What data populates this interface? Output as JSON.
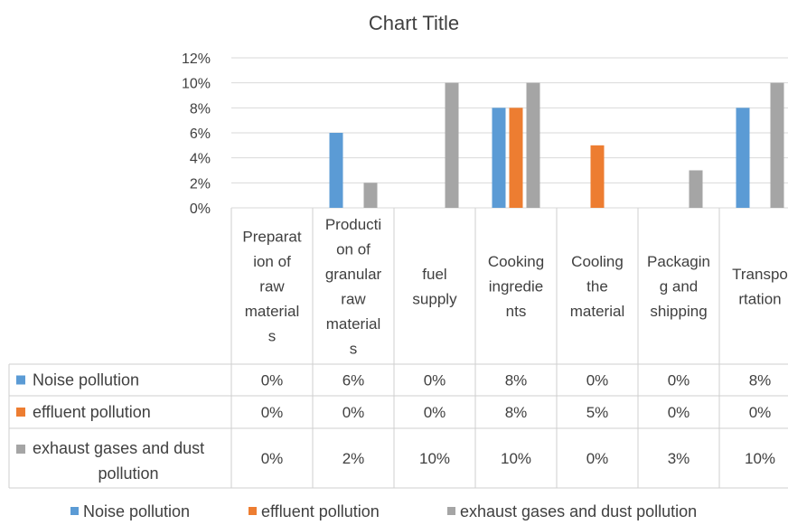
{
  "chart_data": {
    "type": "bar",
    "title": "Chart Title",
    "categories": [
      "Preparat ion of raw material s",
      "Producti on of granular raw material s",
      "fuel supply",
      "Cooking ingredie nts",
      "Cooling the material",
      "Packagin g and shipping",
      "Transpo rtation"
    ],
    "category_lines": [
      [
        "Preparat",
        "ion of",
        "raw",
        "material",
        "s"
      ],
      [
        "Producti",
        "on of",
        "granular",
        "raw",
        "material",
        "s"
      ],
      [
        "fuel",
        "supply"
      ],
      [
        "Cooking",
        "ingredie",
        "nts"
      ],
      [
        "Cooling",
        "the",
        "material"
      ],
      [
        "Packagin",
        "g and",
        "shipping"
      ],
      [
        "Transpo",
        "rtation"
      ]
    ],
    "series": [
      {
        "name": "Noise pollution",
        "color": "#5B9BD5",
        "values": [
          0,
          6,
          0,
          8,
          0,
          0,
          8
        ],
        "labels": [
          "0%",
          "6%",
          "0%",
          "8%",
          "0%",
          "0%",
          "8%"
        ]
      },
      {
        "name": "effluent pollution",
        "color": "#ED7D31",
        "values": [
          0,
          0,
          0,
          8,
          5,
          0,
          0
        ],
        "labels": [
          "0%",
          "0%",
          "0%",
          "8%",
          "5%",
          "0%",
          "0%"
        ]
      },
      {
        "name": "exhaust gases and dust pollution",
        "color": "#A5A5A5",
        "values": [
          0,
          2,
          10,
          10,
          0,
          3,
          10
        ],
        "labels": [
          "0%",
          "2%",
          "10%",
          "10%",
          "0%",
          "3%",
          "10%"
        ]
      }
    ],
    "ylim": [
      0,
      12
    ],
    "yticks": [
      "0%",
      "2%",
      "4%",
      "6%",
      "8%",
      "10%",
      "12%"
    ],
    "gridlines": true,
    "data_table": true,
    "legend_position": "bottom"
  }
}
